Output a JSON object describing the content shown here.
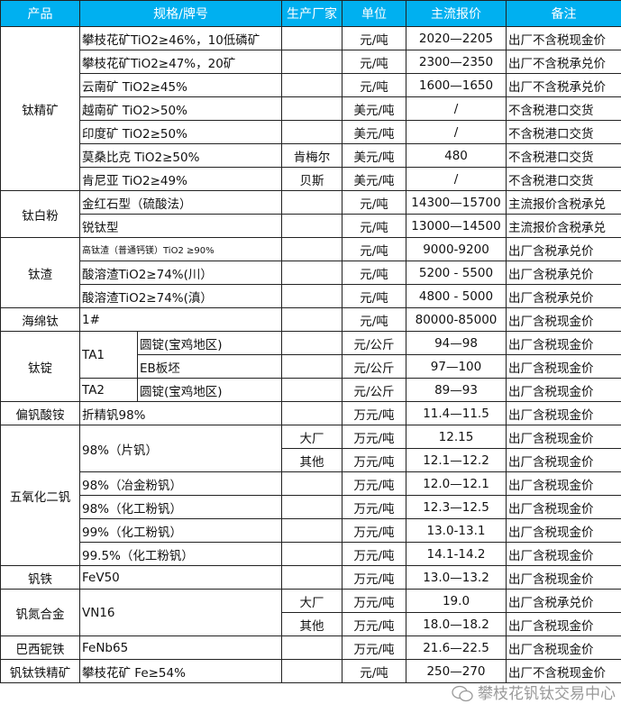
{
  "header": [
    "产品",
    "规格/牌号",
    "生产厂家",
    "单位",
    "主流报价",
    "备注"
  ],
  "groups": {
    "ti_conc": "钛精矿",
    "ti_white": "钛白粉",
    "ti_slag": "钛渣",
    "sponge": "海绵钛",
    "ingot": "钛锭",
    "amv": "偏钒酸铵",
    "v2o5": "五氧化二钒",
    "fev": "钒铁",
    "vn": "钒氮合金",
    "fenb": "巴西铌铁",
    "vti": "钒钛铁精矿"
  },
  "rows": [
    {
      "spec": "攀枝花矿TiO2≥46%，10低磷矿",
      "maker": "",
      "unit": "元/吨",
      "price": "2020—2205",
      "note": "出厂不含税现金价"
    },
    {
      "spec": "攀枝花矿TiO2≥47%，20矿",
      "maker": "",
      "unit": "元/吨",
      "price": "2300—2350",
      "note": "出厂不含税承兑价"
    },
    {
      "spec": "云南矿 TiO2≥45%",
      "maker": "",
      "unit": "元/吨",
      "price": "1600—1650",
      "note": "出厂不含税承兑价"
    },
    {
      "spec": "越南矿 TiO2>50%",
      "maker": "",
      "unit": "美元/吨",
      "price": "/",
      "note": "不含税港口交货"
    },
    {
      "spec": "印度矿 TiO2≥50%",
      "maker": "",
      "unit": "美元/吨",
      "price": "/",
      "note": "不含税港口交货"
    },
    {
      "spec": "莫桑比克 TiO2≥50%",
      "maker": "肯梅尔",
      "unit": "美元/吨",
      "price": "480",
      "note": "不含税港口交货"
    },
    {
      "spec": "肯尼亚 TiO2≥49%",
      "maker": "贝斯",
      "unit": "美元/吨",
      "price": "/",
      "note": "不含税港口交货"
    },
    {
      "spec": "金红石型（硫酸法）",
      "maker": "",
      "unit": "元/吨",
      "price": "14300—15700",
      "note": "主流报价含税承兑"
    },
    {
      "spec": "锐钛型",
      "maker": "",
      "unit": "元/吨",
      "price": "13000—14500",
      "note": "主流报价含税承兑"
    },
    {
      "spec": "高钛渣（普通钙镁）TiO2 ≥90%",
      "maker": "",
      "unit": "元/吨",
      "price": "9000-9200",
      "note": "出厂含税承兑价"
    },
    {
      "spec": "酸溶渣TiO2≥74%(川）",
      "maker": "",
      "unit": "元/吨",
      "price": "5200 - 5500",
      "note": "出厂含税承兑价"
    },
    {
      "spec": "酸溶渣TiO2≥74%(滇）",
      "maker": "",
      "unit": "元/吨",
      "price": "4800 - 5000",
      "note": "出厂含税承兑价"
    },
    {
      "spec": "1#",
      "maker": "",
      "unit": "元/吨",
      "price": "80000-85000",
      "note": "出厂含税现金价"
    },
    {
      "grade": "TA1",
      "spec": "圆锭(宝鸡地区)",
      "maker": "",
      "unit": "元/公斤",
      "price": "94—98",
      "note": "出厂含税现金价"
    },
    {
      "spec": "EB板坯",
      "maker": "",
      "unit": "元/公斤",
      "price": "97—100",
      "note": "出厂含税现金价"
    },
    {
      "grade": "TA2",
      "spec": "圆锭(宝鸡地区)",
      "maker": "",
      "unit": "元/公斤",
      "price": "89—93",
      "note": "出厂含税现金价"
    },
    {
      "spec": "折精钒98%",
      "maker": "",
      "unit": "万元/吨",
      "price": "11.4—11.5",
      "note": "出厂含税现金价"
    },
    {
      "spec": "98%（片钒）",
      "maker": "大厂",
      "unit": "万元/吨",
      "price": "12.15",
      "note": "出厂含税现金价"
    },
    {
      "maker": "其他",
      "unit": "万元/吨",
      "price": "12.1—12.2",
      "note": "出厂含税现金价"
    },
    {
      "spec": "98%（冶金粉钒）",
      "maker": "",
      "unit": "万元/吨",
      "price": "12.0—12.1",
      "note": "出厂含税现金价"
    },
    {
      "spec": "98%（化工粉钒）",
      "maker": "",
      "unit": "万元/吨",
      "price": "12.3—12.5",
      "note": "出厂含税现金价"
    },
    {
      "spec": "99%（化工粉钒）",
      "maker": "",
      "unit": "万元/吨",
      "price": "13.0-13.1",
      "note": "出厂含税现金价"
    },
    {
      "spec": "99.5%（化工粉钒）",
      "maker": "",
      "unit": "万元/吨",
      "price": "14.1-14.2",
      "note": "出厂含税现金价"
    },
    {
      "spec": "FeV50",
      "maker": "",
      "unit": "万元/吨",
      "price": "13.0—13.2",
      "note": "出厂含税现金价"
    },
    {
      "spec": "VN16",
      "maker": "大厂",
      "unit": "万元/吨",
      "price": "19.0",
      "note": "出厂含税承兑价"
    },
    {
      "maker": "其他",
      "unit": "万元/吨",
      "price": "18.0—18.2",
      "note": "出厂含税现金价"
    },
    {
      "spec": "FeNb65",
      "maker": "",
      "unit": "万元/吨",
      "price": "21.6—22.5",
      "note": "出厂含税现金价"
    },
    {
      "spec": "攀枝花矿 Fe≥54%",
      "maker": "",
      "unit": "元/吨",
      "price": "250—270",
      "note": "出厂不含税现金价"
    }
  ],
  "watermark": "攀枝花钒钛交易中心",
  "colors": {
    "header_bg": "#00b0f0",
    "header_text": "#ffffff"
  }
}
